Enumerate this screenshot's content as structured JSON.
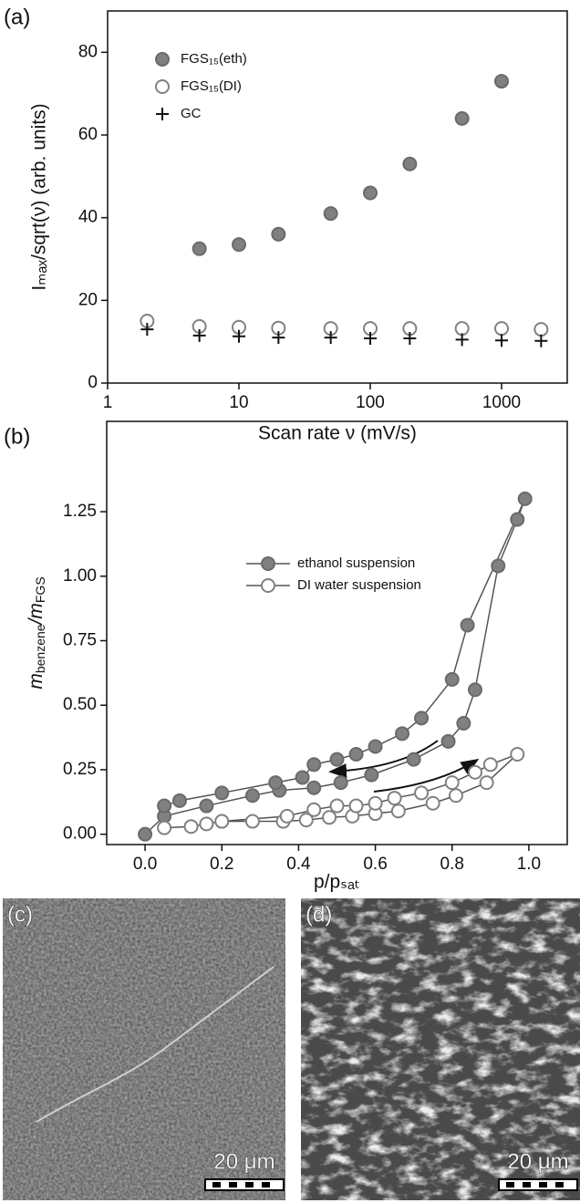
{
  "chart_data": [
    {
      "type": "scatter",
      "panel": "(a)",
      "xlabel": "Scan rate ν (mV/s)",
      "ylabel": "Iₘₐₓ/sqrt(ν) (arb. units)",
      "xscale": "log",
      "xlim": [
        1,
        3162
      ],
      "xticks": [
        1,
        10,
        100,
        1000
      ],
      "ylim": [
        0,
        90
      ],
      "yticks": [
        0,
        20,
        40,
        60,
        80
      ],
      "legend": "upper left",
      "series": [
        {
          "name": "FGS₁₅(eth)",
          "color": "#808080",
          "marker": "filled circle",
          "x": [
            5,
            10,
            20,
            50,
            100,
            200,
            500,
            1000
          ],
          "values": [
            32.5,
            33.5,
            36,
            41,
            46,
            53,
            64,
            73
          ]
        },
        {
          "name": "FGS₁₅(DI)",
          "color": "#808080",
          "marker": "open circle",
          "x": [
            2,
            5,
            10,
            20,
            50,
            100,
            200,
            500,
            1000,
            2000
          ],
          "values": [
            15,
            13.7,
            13.5,
            13.3,
            13.2,
            13.2,
            13.2,
            13.2,
            13.2,
            13
          ]
        },
        {
          "name": "GC",
          "color": "#111111",
          "marker": "plus",
          "x": [
            2,
            5,
            10,
            20,
            50,
            100,
            200,
            500,
            1000,
            2000
          ],
          "values": [
            13,
            11.5,
            11.3,
            11,
            11,
            10.8,
            10.8,
            10.5,
            10.3,
            10.2
          ]
        }
      ]
    },
    {
      "type": "line",
      "panel": "(b)",
      "xlabel": "p/pₛₐₜ",
      "ylabel": [
        "m",
        "benzene",
        "/m",
        "FGS"
      ],
      "xlim": [
        -0.1,
        1.1
      ],
      "xticks": [
        {
          "value": 0,
          "label": "0.0"
        },
        {
          "value": 0.2,
          "label": "0.2"
        },
        {
          "value": 0.4,
          "label": "0.4"
        },
        {
          "value": 0.6,
          "label": "0.6"
        },
        {
          "value": 0.8,
          "label": "0.8"
        },
        {
          "value": 1,
          "label": "1.0"
        }
      ],
      "ylim": [
        -0.04,
        1.6
      ],
      "yticks": [
        {
          "value": 0,
          "label": "0.00"
        },
        {
          "value": 0.25,
          "label": "0.25"
        },
        {
          "value": 0.5,
          "label": "0.50"
        },
        {
          "value": 0.75,
          "label": "0.75"
        },
        {
          "value": 1,
          "label": "1.00"
        },
        {
          "value": 1.25,
          "label": "1.25"
        }
      ],
      "legend": "center left",
      "series": [
        {
          "name": "ethanol suspension",
          "color": "#808080",
          "marker": "filled circle",
          "x": [
            0,
            0.05,
            0.16,
            0.28,
            0.35,
            0.44,
            0.51,
            0.59,
            0.7,
            0.79,
            0.83,
            0.86,
            0.92,
            0.97,
            0.99,
            0.84,
            0.8,
            0.72,
            0.67,
            0.6,
            0.55,
            0.5,
            0.44,
            0.41,
            0.34,
            0.2,
            0.09,
            0.05
          ],
          "values": [
            0,
            0.07,
            0.11,
            0.15,
            0.17,
            0.18,
            0.2,
            0.23,
            0.29,
            0.36,
            0.43,
            0.56,
            1.04,
            1.22,
            1.3,
            0.81,
            0.6,
            0.45,
            0.39,
            0.34,
            0.31,
            0.29,
            0.27,
            0.22,
            0.2,
            0.16,
            0.13,
            0.11
          ]
        },
        {
          "name": "DI water suspension",
          "color": "#808080",
          "marker": "open circle",
          "x": [
            0.05,
            0.12,
            0.2,
            0.28,
            0.36,
            0.42,
            0.48,
            0.54,
            0.6,
            0.66,
            0.75,
            0.81,
            0.89,
            0.97,
            0.9,
            0.86,
            0.8,
            0.72,
            0.65,
            0.6,
            0.55,
            0.5,
            0.44,
            0.37,
            0.2,
            0.16
          ],
          "values": [
            0.025,
            0.03,
            0.05,
            0.05,
            0.05,
            0.055,
            0.065,
            0.07,
            0.08,
            0.09,
            0.12,
            0.15,
            0.2,
            0.31,
            0.27,
            0.24,
            0.2,
            0.16,
            0.14,
            0.12,
            0.11,
            0.11,
            0.095,
            0.07,
            0.05,
            0.04
          ]
        }
      ]
    }
  ],
  "images": [
    {
      "label": "(c)",
      "scale": "20 μm"
    },
    {
      "label": "(d)",
      "scale": "20 μm"
    }
  ]
}
